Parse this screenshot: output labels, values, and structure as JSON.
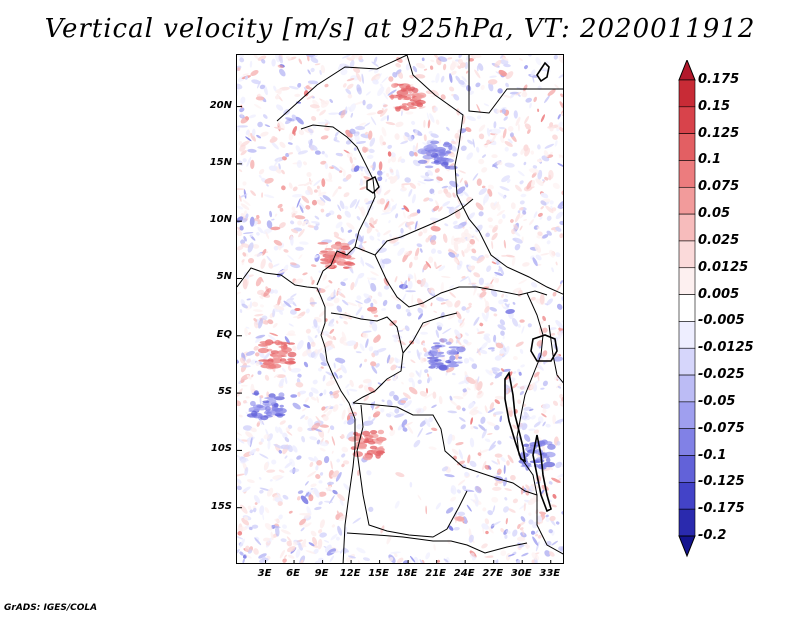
{
  "title": "Vertical velocity [m/s] at 925hPa, VT: 2020011912",
  "credit": "GrADS: IGES/COLA",
  "map": {
    "lat_labels": [
      "20N",
      "15N",
      "10N",
      "5N",
      "EQ",
      "5S",
      "10S",
      "15S"
    ],
    "lat_values": [
      20,
      15,
      10,
      5,
      0,
      -5,
      -10,
      -15
    ],
    "lon_labels": [
      "3E",
      "6E",
      "9E",
      "12E",
      "15E",
      "18E",
      "21E",
      "24E",
      "27E",
      "30E",
      "33E"
    ],
    "lon_values": [
      3,
      6,
      9,
      12,
      15,
      18,
      21,
      24,
      27,
      30,
      33
    ],
    "lon_range": [
      0,
      34.5
    ],
    "lat_range": [
      -20,
      24.5
    ]
  },
  "colorbar": {
    "labels": [
      "0.175",
      "0.15",
      "0.125",
      "0.1",
      "0.075",
      "0.05",
      "0.025",
      "0.0125",
      "0.005",
      "-0.005",
      "-0.0125",
      "-0.025",
      "-0.05",
      "-0.075",
      "-0.1",
      "-0.125",
      "-0.175",
      "-0.2"
    ],
    "colors": [
      "#b2182b",
      "#c82b36",
      "#d8434b",
      "#e35f63",
      "#ec7c7e",
      "#f29b9b",
      "#f7bcbc",
      "#fbdada",
      "#fdf0f0",
      "#ffffff",
      "#eeeeff",
      "#d6d6fb",
      "#bcbcf5",
      "#9f9fef",
      "#8181e6",
      "#6262d9",
      "#4343c8",
      "#2a2aae",
      "#14148f"
    ]
  }
}
